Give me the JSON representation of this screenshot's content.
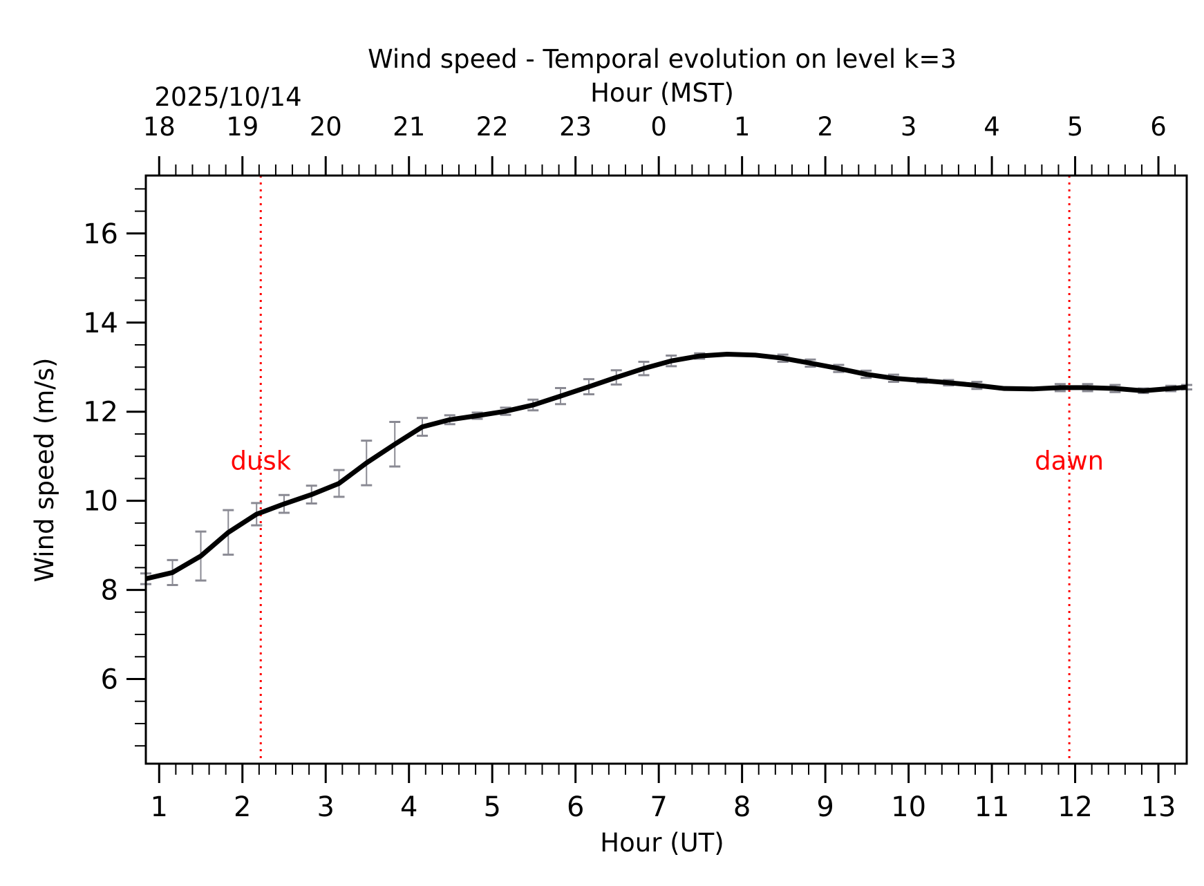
{
  "chart_data": {
    "type": "line",
    "title": "Wind speed - Temporal evolution on level k=3",
    "xlabel": "Hour (UT)",
    "ylabel": "Wind speed (m/s)",
    "top_xlabel": "Hour (MST)",
    "top_date_label": "2025/10/14",
    "xlim": [
      0.84,
      13.34
    ],
    "ylim": [
      4.1,
      17.3
    ],
    "x_ticks": [
      1,
      2,
      3,
      4,
      5,
      6,
      7,
      8,
      9,
      10,
      11,
      12,
      13
    ],
    "x_tick_labels": [
      "1",
      "2",
      "3",
      "4",
      "5",
      "6",
      "7",
      "8",
      "9",
      "10",
      "11",
      "12",
      "13"
    ],
    "x_minor_step": 0.2,
    "top_ticks_ut": [
      1,
      2,
      3,
      4,
      5,
      6,
      7,
      8,
      9,
      10,
      11,
      12,
      13
    ],
    "top_tick_labels": [
      "18",
      "19",
      "20",
      "21",
      "22",
      "23",
      "0",
      "1",
      "2",
      "3",
      "4",
      "5",
      "6"
    ],
    "y_ticks": [
      6,
      8,
      10,
      12,
      14,
      16
    ],
    "y_tick_labels": [
      "6",
      "8",
      "10",
      "12",
      "14",
      "16"
    ],
    "y_minor_step": 0.5,
    "grid": false,
    "series": [
      {
        "name": "Wind speed",
        "color": "#000000",
        "x": [
          0.84,
          1.16,
          1.5,
          1.83,
          2.17,
          2.5,
          2.83,
          3.16,
          3.49,
          3.83,
          4.16,
          4.49,
          4.82,
          5.16,
          5.49,
          5.82,
          6.16,
          6.49,
          6.82,
          7.15,
          7.49,
          7.82,
          8.16,
          8.49,
          8.82,
          9.16,
          9.49,
          9.82,
          10.16,
          10.48,
          10.82,
          11.15,
          11.49,
          11.82,
          12.15,
          12.48,
          12.82,
          13.15,
          13.34
        ],
        "values": [
          8.25,
          8.39,
          8.76,
          9.29,
          9.7,
          9.93,
          10.14,
          10.39,
          10.85,
          11.27,
          11.66,
          11.82,
          11.91,
          12.01,
          12.15,
          12.35,
          12.56,
          12.77,
          12.97,
          13.14,
          13.25,
          13.29,
          13.27,
          13.2,
          13.09,
          12.97,
          12.84,
          12.75,
          12.7,
          12.65,
          12.59,
          12.52,
          12.51,
          12.54,
          12.54,
          12.52,
          12.47,
          12.52,
          12.55
        ],
        "error": [
          0.12,
          0.28,
          0.55,
          0.5,
          0.25,
          0.2,
          0.2,
          0.3,
          0.5,
          0.5,
          0.2,
          0.1,
          0.07,
          0.08,
          0.12,
          0.18,
          0.17,
          0.16,
          0.15,
          0.12,
          0.06,
          0.0,
          0.0,
          0.08,
          0.08,
          0.08,
          0.08,
          0.08,
          0.05,
          0.06,
          0.08,
          0.02,
          0.02,
          0.08,
          0.08,
          0.08,
          0.05,
          0.06,
          0.05
        ],
        "error_color": "#8a8a93"
      }
    ],
    "vlines": [
      {
        "x": 2.22,
        "label": "dusk",
        "label_y": 10.7,
        "color": "#ff0000",
        "style": "dotted"
      },
      {
        "x": 11.93,
        "label": "dawn",
        "label_y": 10.7,
        "color": "#ff0000",
        "style": "dotted"
      }
    ]
  }
}
